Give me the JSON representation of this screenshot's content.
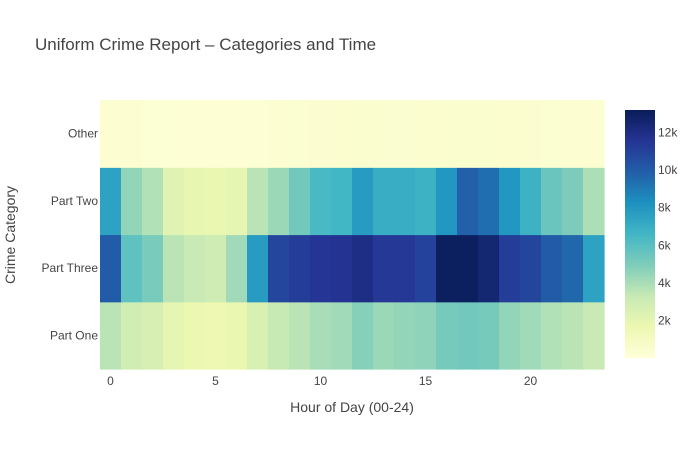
{
  "chart_data": {
    "type": "heatmap",
    "title": "Uniform Crime Report – Categories and Time",
    "xlabel": "Hour of Day (00-24)",
    "ylabel": "Crime Category",
    "x": [
      0,
      1,
      2,
      3,
      4,
      5,
      6,
      7,
      8,
      9,
      10,
      11,
      12,
      13,
      14,
      15,
      16,
      17,
      18,
      19,
      20,
      21,
      22,
      23
    ],
    "x_ticks": [
      "0",
      "5",
      "10",
      "15",
      "20"
    ],
    "x_tick_values": [
      0,
      5,
      10,
      15,
      20
    ],
    "xlim": [
      -0.5,
      23.5
    ],
    "categories": [
      "Part One",
      "Part Three",
      "Part Two",
      "Other"
    ],
    "values": [
      [
        3600,
        2900,
        2600,
        2000,
        1700,
        1600,
        1800,
        2500,
        3300,
        3600,
        4000,
        4200,
        4800,
        4300,
        4500,
        4600,
        5200,
        5300,
        5200,
        4500,
        4200,
        3800,
        3600,
        3200
      ],
      [
        10000,
        5800,
        5100,
        3600,
        3200,
        3000,
        4200,
        7800,
        10800,
        11200,
        11500,
        11600,
        12000,
        11400,
        11400,
        11000,
        13000,
        13000,
        12500,
        11200,
        10900,
        10000,
        9600,
        7500
      ],
      [
        7500,
        4500,
        3800,
        2200,
        1900,
        1800,
        2000,
        3600,
        4300,
        5300,
        6400,
        6600,
        7800,
        7000,
        7000,
        6800,
        8000,
        9800,
        9400,
        8000,
        6800,
        5500,
        5000,
        3900
      ],
      [
        300,
        280,
        260,
        240,
        200,
        190,
        200,
        250,
        320,
        340,
        380,
        400,
        450,
        420,
        420,
        410,
        470,
        480,
        450,
        400,
        360,
        330,
        300,
        280
      ]
    ],
    "zlim": [
      0,
      13200
    ],
    "colorscale": [
      "#ffffd9",
      "#edf8b1",
      "#c7e9b4",
      "#7fcdbb",
      "#41b6c4",
      "#1d91c0",
      "#225ea8",
      "#253494",
      "#081d58"
    ],
    "colorbar_ticks": [
      "2k",
      "4k",
      "6k",
      "8k",
      "10k",
      "12k"
    ],
    "colorbar_tick_values": [
      2000,
      4000,
      6000,
      8000,
      10000,
      12000
    ],
    "grid": false
  }
}
